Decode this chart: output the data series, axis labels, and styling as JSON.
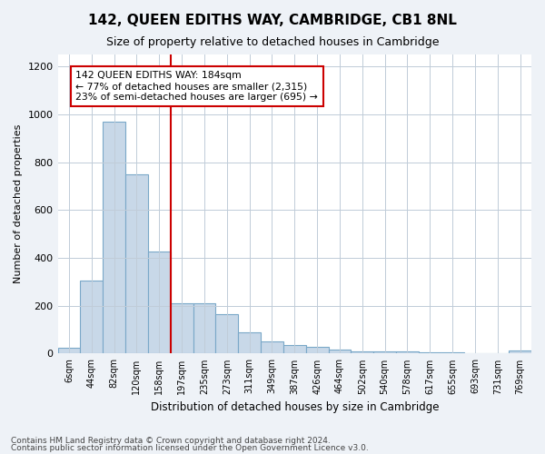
{
  "title": "142, QUEEN EDITHS WAY, CAMBRIDGE, CB1 8NL",
  "subtitle": "Size of property relative to detached houses in Cambridge",
  "xlabel": "Distribution of detached houses by size in Cambridge",
  "ylabel": "Number of detached properties",
  "bar_color": "#c8d8e8",
  "bar_edge_color": "#7aa8c8",
  "categories": [
    "6sqm",
    "44sqm",
    "82sqm",
    "120sqm",
    "158sqm",
    "197sqm",
    "235sqm",
    "273sqm",
    "311sqm",
    "349sqm",
    "387sqm",
    "426sqm",
    "464sqm",
    "502sqm",
    "540sqm",
    "578sqm",
    "617sqm",
    "655sqm",
    "693sqm",
    "731sqm",
    "769sqm"
  ],
  "values": [
    25,
    305,
    970,
    748,
    425,
    210,
    210,
    165,
    90,
    50,
    35,
    30,
    18,
    10,
    8,
    8,
    6,
    4,
    3,
    2,
    12
  ],
  "ylim": [
    0,
    1250
  ],
  "yticks": [
    0,
    200,
    400,
    600,
    800,
    1000,
    1200
  ],
  "vline_x": 4.5,
  "vline_color": "#cc0000",
  "annotation_text": "142 QUEEN EDITHS WAY: 184sqm\n← 77% of detached houses are smaller (2,315)\n23% of semi-detached houses are larger (695) →",
  "annotation_box_color": "#ffffff",
  "annotation_box_edge": "#cc0000",
  "footer1": "Contains HM Land Registry data © Crown copyright and database right 2024.",
  "footer2": "Contains public sector information licensed under the Open Government Licence v3.0.",
  "bg_color": "#eef2f7",
  "plot_bg_color": "#ffffff",
  "grid_color": "#c0ccd8"
}
